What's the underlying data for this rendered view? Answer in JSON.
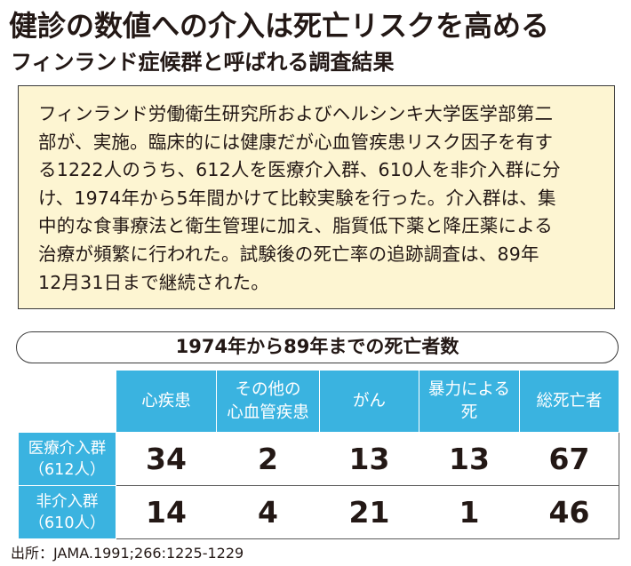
{
  "title": "健診の数値への介入は死亡リスクを高める",
  "subtitle": "フィンランド症候群と呼ばれる調査結果",
  "summary_lines": [
    "フィンランド労働衛生研究所およびヘルシンキ大学医学部第二",
    "部が、実施。臨床的には健康だが心血管疾患リスク因子を有す",
    "る1222人のうち、612人を医療介入群、610人を非介入群に分",
    "け、1974年から5年間かけて比較実験を行った。介入群は、集",
    "中的な食事療法と衛生管理に加え、脂質低下薬と降圧薬による",
    "治療が頻繁に行われた。試験後の死亡率の追跡調査は、89年",
    "12月31日まで継続された。"
  ],
  "table": {
    "title": "1974年から89年までの死亡者数",
    "columns": [
      {
        "line1": "心疾患",
        "line2": ""
      },
      {
        "line1": "その他の",
        "line2": "心血管疾患"
      },
      {
        "line1": "がん",
        "line2": ""
      },
      {
        "line1": "暴力による",
        "line2": "死"
      },
      {
        "line1": "総死亡者",
        "line2": ""
      }
    ],
    "rows": [
      {
        "label1": "医療介入群",
        "label2": "（612人）",
        "values": [
          "34",
          "2",
          "13",
          "13",
          "67"
        ]
      },
      {
        "label1": "非介入群",
        "label2": "（610人）",
        "values": [
          "14",
          "4",
          "21",
          "1",
          "46"
        ]
      }
    ]
  },
  "source": "出所：JAMA.1991;266:1225-1229",
  "colors": {
    "header_blue": "#3ab3e0",
    "summary_bg": "#fdf5d2",
    "text": "#231815"
  }
}
